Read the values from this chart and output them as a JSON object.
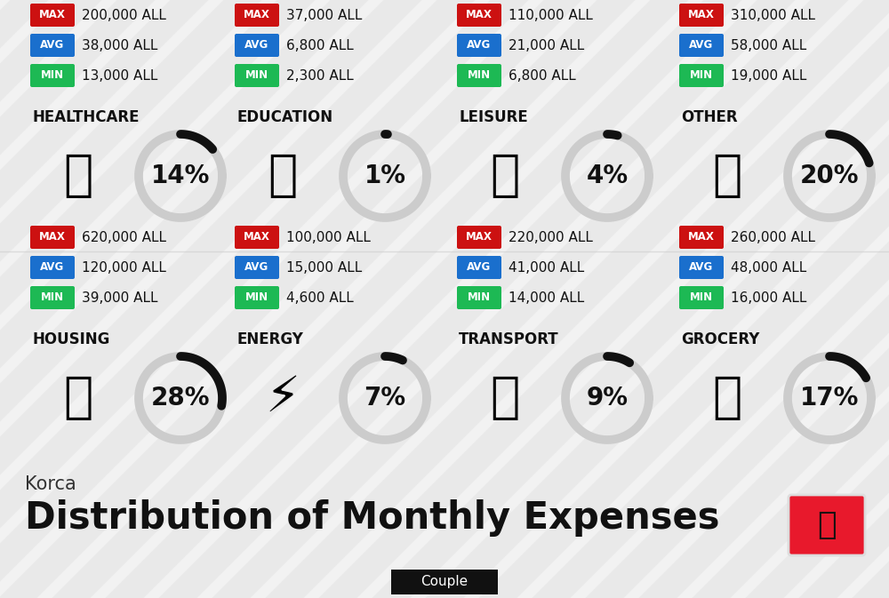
{
  "title": "Distribution of Monthly Expenses",
  "subtitle": "Korca",
  "badge": "Couple",
  "background_color": "#f2f2f2",
  "categories": [
    {
      "name": "HOUSING",
      "percent": 28,
      "min": "39,000 ALL",
      "avg": "120,000 ALL",
      "max": "620,000 ALL",
      "row": 0,
      "col": 0
    },
    {
      "name": "ENERGY",
      "percent": 7,
      "min": "4,600 ALL",
      "avg": "15,000 ALL",
      "max": "100,000 ALL",
      "row": 0,
      "col": 1
    },
    {
      "name": "TRANSPORT",
      "percent": 9,
      "min": "14,000 ALL",
      "avg": "41,000 ALL",
      "max": "220,000 ALL",
      "row": 0,
      "col": 2
    },
    {
      "name": "GROCERY",
      "percent": 17,
      "min": "16,000 ALL",
      "avg": "48,000 ALL",
      "max": "260,000 ALL",
      "row": 0,
      "col": 3
    },
    {
      "name": "HEALTHCARE",
      "percent": 14,
      "min": "13,000 ALL",
      "avg": "38,000 ALL",
      "max": "200,000 ALL",
      "row": 1,
      "col": 0
    },
    {
      "name": "EDUCATION",
      "percent": 1,
      "min": "2,300 ALL",
      "avg": "6,800 ALL",
      "max": "37,000 ALL",
      "row": 1,
      "col": 1
    },
    {
      "name": "LEISURE",
      "percent": 4,
      "min": "6,800 ALL",
      "avg": "21,000 ALL",
      "max": "110,000 ALL",
      "row": 1,
      "col": 2
    },
    {
      "name": "OTHER",
      "percent": 20,
      "min": "19,000 ALL",
      "avg": "58,000 ALL",
      "max": "310,000 ALL",
      "row": 1,
      "col": 3
    }
  ],
  "min_color": "#1db954",
  "avg_color": "#1a6fcd",
  "max_color": "#cc1111",
  "arc_color_filled": "#111111",
  "arc_color_empty": "#cccccc",
  "title_fontsize": 30,
  "subtitle_fontsize": 15,
  "badge_fontsize": 11,
  "category_fontsize": 12,
  "value_fontsize": 11,
  "percent_fontsize": 20,
  "flag_color": "#e8192c",
  "stripe_color": "#e0e0e0",
  "divider_color": "#cccccc"
}
